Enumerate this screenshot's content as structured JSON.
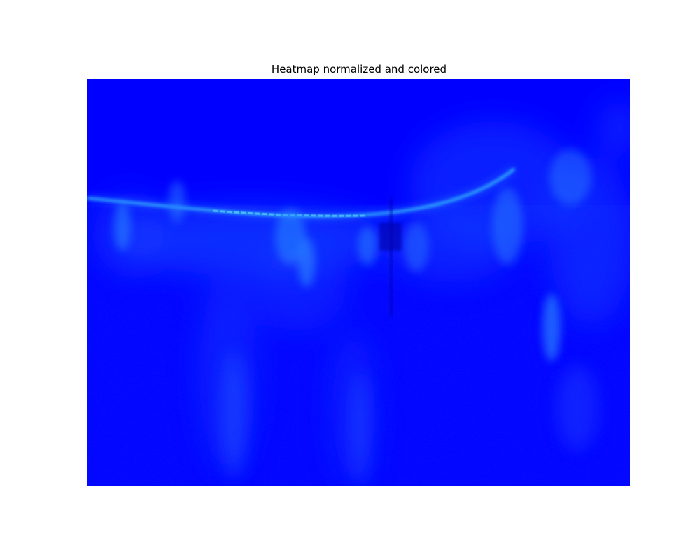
{
  "chart_data": {
    "type": "heatmap",
    "title": "Heatmap normalized and colored",
    "xlabel": "",
    "ylabel": "",
    "axes_visible": false,
    "grid": false,
    "legend": "none",
    "colorbar": false,
    "colormap": "jet",
    "value_range": [
      0,
      1
    ],
    "dominant_value": 0.0
  },
  "colors": {
    "background": "#ffffff",
    "heatmap_base": "#0000ff",
    "heatmap_glow": "#1f7bff",
    "heatmap_hot": "#33d2ff",
    "title_text": "#000000"
  }
}
